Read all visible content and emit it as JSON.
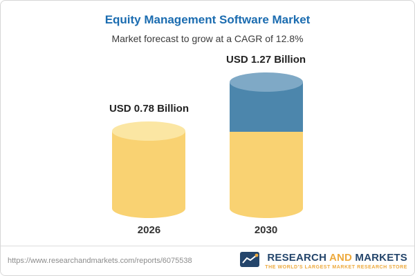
{
  "header": {
    "title": "Equity Management Software Market",
    "subtitle": "Market forecast to grow at a CAGR of 12.8%"
  },
  "chart_data": {
    "type": "bar",
    "variant": "3d-cylinder",
    "title": "Equity Management Software Market",
    "subtitle": "Market forecast to grow at a CAGR of 12.8%",
    "unit": "USD Billion",
    "cagr": "12.8%",
    "categories": [
      "2026",
      "2030"
    ],
    "values": [
      0.78,
      1.27
    ],
    "value_labels": [
      "USD 0.78 Billion",
      "USD 1.27 Billion"
    ],
    "legend": null,
    "grid": false,
    "colors": {
      "base_segment": "#F9D272",
      "base_top": "#FBE6A3",
      "growth_segment": "#4C86AC",
      "growth_top": "#7FA9C6",
      "title_text": "#1B6CB0"
    }
  },
  "footer": {
    "url": "https://www.researchandmarkets.com/reports/6075538",
    "brand": {
      "logo_icon": "research-and-markets-emblem",
      "word1": "RESEARCH",
      "word2": "AND",
      "word3": "MARKETS",
      "tagline": "THE WORLD'S LARGEST MARKET RESEARCH STORE"
    }
  }
}
